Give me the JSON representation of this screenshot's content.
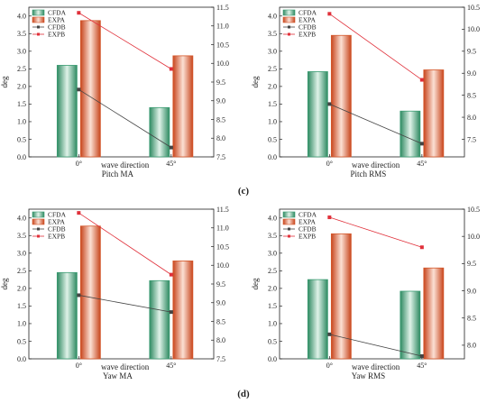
{
  "panel_labels": [
    "(c)",
    "(d)"
  ],
  "chart_data": [
    {
      "type": "bar",
      "title": "Pitch MA",
      "xlabel": "wave direction",
      "ylabel": "deg",
      "categories": [
        "0°",
        "45°"
      ],
      "series": [
        {
          "name": "CFDA",
          "values": [
            2.6,
            1.4
          ],
          "axis": "left",
          "mark": "bar",
          "color": "#3a9c72"
        },
        {
          "name": "EXPA",
          "values": [
            3.87,
            2.87
          ],
          "axis": "left",
          "mark": "bar",
          "color": "#d4572a"
        },
        {
          "name": "CFDB",
          "values": [
            9.3,
            7.75
          ],
          "axis": "right",
          "mark": "line",
          "color": "#444444"
        },
        {
          "name": "EXPB",
          "values": [
            11.35,
            9.85
          ],
          "axis": "right",
          "mark": "line",
          "color": "#e0303a"
        }
      ],
      "ylim_left": [
        0,
        4.25
      ],
      "yticks_left": [
        "0.0",
        "0.5",
        "1.0",
        "1.5",
        "2.0",
        "2.5",
        "3.0",
        "3.5",
        "4.0"
      ],
      "ylim_right": [
        7.5,
        11.5
      ],
      "yticks_right": [
        "7.5",
        "8.0",
        "8.5",
        "9.0",
        "9.5",
        "10.0",
        "10.5",
        "11.0",
        "11.5"
      ],
      "legend": "top-left"
    },
    {
      "type": "bar",
      "title": "Pitch RMS",
      "xlabel": "wave direction",
      "ylabel": "deg",
      "categories": [
        "0°",
        "45°"
      ],
      "series": [
        {
          "name": "CFDA",
          "values": [
            2.42,
            1.3
          ],
          "axis": "left",
          "mark": "bar",
          "color": "#3a9c72"
        },
        {
          "name": "EXPA",
          "values": [
            3.45,
            2.47
          ],
          "axis": "left",
          "mark": "bar",
          "color": "#d4572a"
        },
        {
          "name": "CFDB",
          "values": [
            8.3,
            7.4
          ],
          "axis": "right",
          "mark": "line",
          "color": "#444444"
        },
        {
          "name": "EXPB",
          "values": [
            10.35,
            8.85
          ],
          "axis": "right",
          "mark": "line",
          "color": "#e0303a"
        }
      ],
      "ylim_left": [
        0,
        4.25
      ],
      "yticks_left": [
        "0.0",
        "0.5",
        "1.0",
        "1.5",
        "2.0",
        "2.5",
        "3.0",
        "3.5",
        "4.0"
      ],
      "ylim_right": [
        7.1,
        10.5
      ],
      "yticks_right": [
        "7.5",
        "8.0",
        "8.5",
        "9.0",
        "9.5",
        "10.0",
        "10.5"
      ],
      "legend": "top-left"
    },
    {
      "type": "bar",
      "title": "Yaw MA",
      "xlabel": "wave direction",
      "ylabel": "deg",
      "categories": [
        "0°",
        "45°"
      ],
      "series": [
        {
          "name": "CFDA",
          "values": [
            2.45,
            2.22
          ],
          "axis": "left",
          "mark": "bar",
          "color": "#3a9c72"
        },
        {
          "name": "EXPA",
          "values": [
            3.77,
            2.78
          ],
          "axis": "left",
          "mark": "bar",
          "color": "#d4572a"
        },
        {
          "name": "CFDB",
          "values": [
            9.2,
            8.75
          ],
          "axis": "right",
          "mark": "line",
          "color": "#444444"
        },
        {
          "name": "EXPB",
          "values": [
            11.4,
            9.75
          ],
          "axis": "right",
          "mark": "line",
          "color": "#e0303a"
        }
      ],
      "ylim_left": [
        0,
        4.25
      ],
      "yticks_left": [
        "0.0",
        "0.5",
        "1.0",
        "1.5",
        "2.0",
        "2.5",
        "3.0",
        "3.5",
        "4.0"
      ],
      "ylim_right": [
        7.5,
        11.5
      ],
      "yticks_right": [
        "7.5",
        "8.0",
        "8.5",
        "9.0",
        "9.5",
        "10.0",
        "10.5",
        "11.0",
        "11.5"
      ],
      "legend": "top-left"
    },
    {
      "type": "bar",
      "title": "Yaw RMS",
      "xlabel": "wave direction",
      "ylabel": "deg",
      "categories": [
        "0°",
        "45°"
      ],
      "series": [
        {
          "name": "CFDA",
          "values": [
            2.25,
            1.92
          ],
          "axis": "left",
          "mark": "bar",
          "color": "#3a9c72"
        },
        {
          "name": "EXPA",
          "values": [
            3.55,
            2.58
          ],
          "axis": "left",
          "mark": "bar",
          "color": "#d4572a"
        },
        {
          "name": "CFDB",
          "values": [
            8.2,
            7.8
          ],
          "axis": "right",
          "mark": "line",
          "color": "#444444"
        },
        {
          "name": "EXPB",
          "values": [
            10.35,
            9.8
          ],
          "axis": "right",
          "mark": "line",
          "color": "#e0303a"
        }
      ],
      "ylim_left": [
        0,
        4.25
      ],
      "yticks_left": [
        "0.0",
        "0.5",
        "1.0",
        "1.5",
        "2.0",
        "2.5",
        "3.0",
        "3.5",
        "4.0"
      ],
      "ylim_right": [
        7.75,
        10.5
      ],
      "yticks_right": [
        "8.0",
        "8.5",
        "9.0",
        "9.5",
        "10.0",
        "10.5"
      ],
      "legend": "top-left"
    }
  ]
}
